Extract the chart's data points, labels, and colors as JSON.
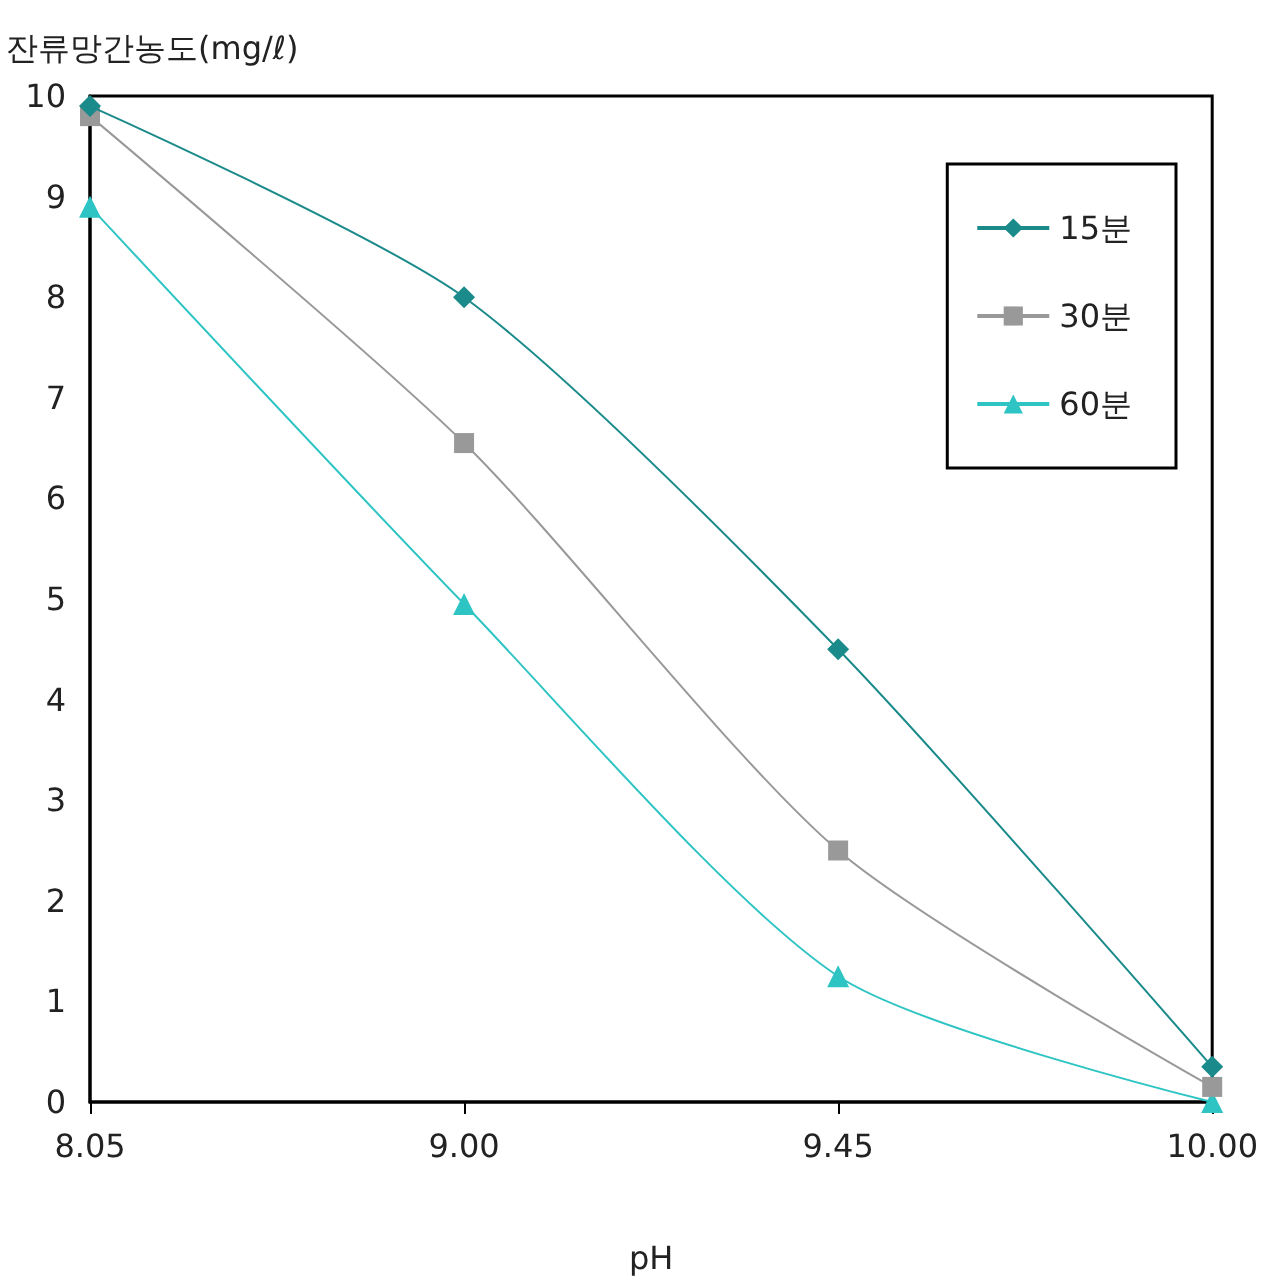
{
  "chart_data": {
    "type": "line",
    "xlabel": "pH",
    "ylabel": "잔류망간농도(mg/ℓ)",
    "categories": [
      "8.05",
      "9.00",
      "9.45",
      "10.00"
    ],
    "series": [
      {
        "name": "15분",
        "color": "#1a8a8a",
        "marker": "diamond",
        "values": [
          9.9,
          8.0,
          4.5,
          0.35
        ]
      },
      {
        "name": "30분",
        "color": "#999999",
        "marker": "square",
        "values": [
          9.8,
          6.55,
          2.5,
          0.15
        ]
      },
      {
        "name": "60분",
        "color": "#2ec4c4",
        "marker": "triangle",
        "values": [
          8.9,
          4.95,
          1.25,
          0.0
        ]
      }
    ],
    "ylim": [
      0,
      10
    ],
    "yticks": [
      0,
      1,
      2,
      3,
      4,
      5,
      6,
      7,
      8,
      9,
      10
    ],
    "grid": false,
    "legend": "top right"
  }
}
